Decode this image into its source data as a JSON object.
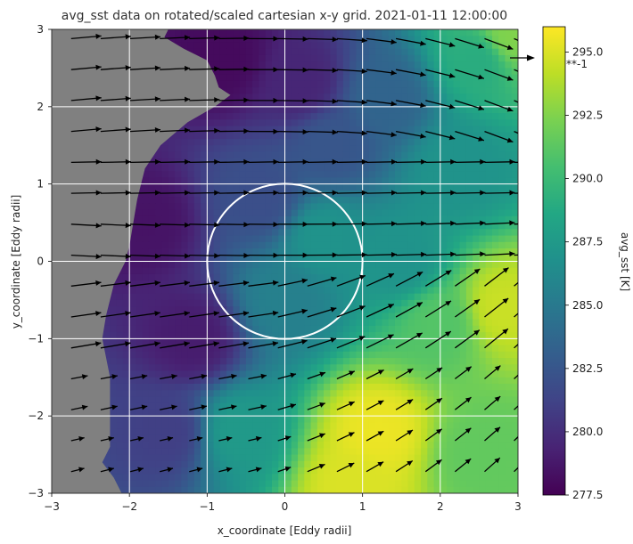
{
  "chart_data": {
    "type": "heatmap",
    "title": "avg_sst data on rotated/scaled cartesian x-y grid.  2021-01-11 12:00:00",
    "xlabel": "x_coordinate [Eddy radii]",
    "ylabel": "y_coordinate [Eddy radii]",
    "xlim": [
      -3,
      3
    ],
    "ylim": [
      -3,
      3
    ],
    "x_ticks": [
      "−3",
      "−2",
      "−1",
      "0",
      "1",
      "2",
      "3"
    ],
    "y_ticks": [
      "−3",
      "−2",
      "−1",
      "0",
      "1",
      "2",
      "3"
    ],
    "grid": true,
    "masked_region_color": "#808080",
    "eddy_circle": {
      "center": [
        0,
        0
      ],
      "radius": 1,
      "color": "#ffffff"
    },
    "colorbar": {
      "label": "avg_sst [K]",
      "range": [
        277.5,
        296.0
      ],
      "ticks": [
        "277.5",
        "280.0",
        "282.5",
        "285.0",
        "287.5",
        "290.0",
        "292.5",
        "295.0"
      ],
      "colormap": "viridis"
    },
    "quiver_key": {
      "label": "**-1"
    },
    "sst_anchor_points": [
      {
        "x": -0.8,
        "y": 2.6,
        "v": 278.0
      },
      {
        "x": 0.2,
        "y": 2.3,
        "v": 279.5
      },
      {
        "x": 1.3,
        "y": 2.1,
        "v": 283.5
      },
      {
        "x": 2.5,
        "y": 2.6,
        "v": 289.0
      },
      {
        "x": 2.9,
        "y": 2.9,
        "v": 292.5
      },
      {
        "x": -1.8,
        "y": 0.5,
        "v": 278.5
      },
      {
        "x": -1.2,
        "y": -1.0,
        "v": 279.0
      },
      {
        "x": -1.5,
        "y": -2.2,
        "v": 281.0
      },
      {
        "x": -0.3,
        "y": 0.8,
        "v": 282.0
      },
      {
        "x": 0.5,
        "y": 0.3,
        "v": 287.0
      },
      {
        "x": 0.0,
        "y": -0.5,
        "v": 285.5
      },
      {
        "x": 1.5,
        "y": 0.0,
        "v": 287.0
      },
      {
        "x": 2.0,
        "y": -0.8,
        "v": 291.0
      },
      {
        "x": 2.8,
        "y": -0.6,
        "v": 294.5
      },
      {
        "x": 1.2,
        "y": -2.2,
        "v": 295.5
      },
      {
        "x": 0.9,
        "y": -2.9,
        "v": 295.0
      },
      {
        "x": 2.5,
        "y": -2.5,
        "v": 291.5
      },
      {
        "x": -0.6,
        "y": -2.2,
        "v": 287.5
      },
      {
        "x": 2.2,
        "y": 1.2,
        "v": 287.0
      },
      {
        "x": 0.6,
        "y": 1.5,
        "v": 282.5
      }
    ],
    "land_boundary": [
      {
        "y": 3.0,
        "x": -1.5
      },
      {
        "y": 2.9,
        "x": -1.55
      },
      {
        "y": 2.75,
        "x": -1.3
      },
      {
        "y": 2.6,
        "x": -1.0
      },
      {
        "y": 2.4,
        "x": -0.9
      },
      {
        "y": 2.25,
        "x": -0.85
      },
      {
        "y": 2.15,
        "x": -0.7
      },
      {
        "y": 2.0,
        "x": -0.9
      },
      {
        "y": 1.8,
        "x": -1.25
      },
      {
        "y": 1.5,
        "x": -1.6
      },
      {
        "y": 1.2,
        "x": -1.8
      },
      {
        "y": 1.0,
        "x": -1.85
      },
      {
        "y": 0.8,
        "x": -1.9
      },
      {
        "y": 0.5,
        "x": -1.95
      },
      {
        "y": 0.2,
        "x": -2.0
      },
      {
        "y": 0.0,
        "x": -2.05
      },
      {
        "y": -0.3,
        "x": -2.2
      },
      {
        "y": -0.7,
        "x": -2.3
      },
      {
        "y": -1.0,
        "x": -2.35
      },
      {
        "y": -1.5,
        "x": -2.25
      },
      {
        "y": -2.0,
        "x": -2.25
      },
      {
        "y": -2.4,
        "x": -2.25
      },
      {
        "y": -2.6,
        "x": -2.35
      },
      {
        "y": -2.8,
        "x": -2.2
      },
      {
        "y": -3.0,
        "x": -2.1
      }
    ]
  }
}
